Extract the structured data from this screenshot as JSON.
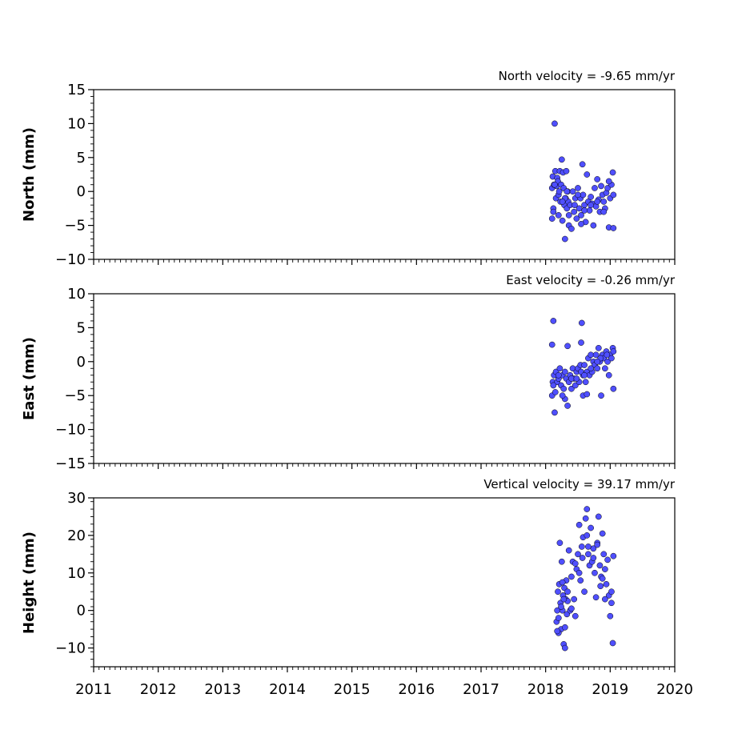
{
  "chart_data": [
    {
      "type": "scatter",
      "title": "North velocity = -9.65 mm/yr",
      "xlabel": "",
      "ylabel": "North (mm)",
      "ylim": [
        -10,
        15
      ],
      "yticks": [
        -10,
        -5,
        0,
        5,
        10,
        15
      ],
      "ytick_labels": [
        "−10",
        "−5",
        "0",
        "5",
        "10",
        "15"
      ],
      "xlim": [
        2011,
        2020
      ],
      "series": [
        {
          "color": "#4f4fff",
          "x": [
            2018.1,
            2018.1,
            2018.11,
            2018.12,
            2018.13,
            2018.14,
            2018.15,
            2018.16,
            2018.17,
            2018.18,
            2018.19,
            2018.2,
            2018.21,
            2018.22,
            2018.23,
            2018.24,
            2018.25,
            2018.26,
            2018.27,
            2018.28,
            2018.29,
            2018.3,
            2018.31,
            2018.32,
            2018.33,
            2018.34,
            2018.35,
            2018.36,
            2018.38,
            2018.4,
            2018.42,
            2018.44,
            2018.46,
            2018.48,
            2018.5,
            2018.52,
            2018.54,
            2018.55,
            2018.57,
            2018.58,
            2018.6,
            2018.62,
            2018.64,
            2018.66,
            2018.68,
            2018.7,
            2018.72,
            2018.74,
            2018.76,
            2018.78,
            2018.8,
            2018.82,
            2018.84,
            2018.86,
            2018.88,
            2018.9,
            2018.92,
            2018.94,
            2018.96,
            2018.98,
            2019.0,
            2019.02,
            2019.04,
            2019.05,
            2018.12,
            2018.3,
            2018.33,
            2018.55,
            2018.45,
            2018.6,
            2018.2,
            2019.05,
            2018.98,
            2018.7,
            2018.36,
            2018.5,
            2018.8,
            2018.9,
            2018.14,
            2018.26
          ],
          "y": [
            -4.0,
            0.5,
            2.2,
            -2.5,
            1.0,
            10.0,
            3.0,
            -1.0,
            0.8,
            2.0,
            1.5,
            -0.5,
            0.0,
            3.0,
            -1.5,
            1.0,
            4.7,
            -4.3,
            2.8,
            0.5,
            -2.0,
            -7.0,
            -1.0,
            3.0,
            -2.5,
            0.0,
            -1.5,
            -5.0,
            -2.0,
            -5.5,
            0.0,
            -3.0,
            -1.0,
            -4.0,
            0.5,
            -2.5,
            -1.0,
            -3.5,
            4.0,
            -0.5,
            -2.0,
            -4.5,
            2.5,
            -1.5,
            -2.8,
            -0.8,
            -1.8,
            -5.0,
            0.5,
            -2.2,
            1.8,
            -1.2,
            -3.0,
            0.8,
            -0.5,
            -1.5,
            -2.5,
            -0.2,
            0.5,
            -5.3,
            -1.0,
            1.0,
            2.8,
            -5.4,
            -3.0,
            -1.0,
            0.0,
            -4.8,
            -2.0,
            -2.8,
            -3.5,
            -0.5,
            1.5,
            -2.0,
            -3.5,
            -0.5,
            -1.5,
            -3.0,
            1.0,
            -1.5
          ]
        }
      ]
    },
    {
      "type": "scatter",
      "title": "East velocity = -0.26 mm/yr",
      "xlabel": "",
      "ylabel": "East (mm)",
      "ylim": [
        -15,
        10
      ],
      "yticks": [
        -15,
        -10,
        -5,
        0,
        5,
        10
      ],
      "ytick_labels": [
        "−15",
        "−10",
        "−5",
        "0",
        "5",
        "10"
      ],
      "xlim": [
        2011,
        2020
      ],
      "series": [
        {
          "color": "#4f4fff",
          "x": [
            2018.1,
            2018.1,
            2018.11,
            2018.12,
            2018.13,
            2018.14,
            2018.15,
            2018.16,
            2018.18,
            2018.2,
            2018.22,
            2018.24,
            2018.26,
            2018.28,
            2018.3,
            2018.32,
            2018.34,
            2018.36,
            2018.38,
            2018.4,
            2018.42,
            2018.44,
            2018.46,
            2018.48,
            2018.5,
            2018.52,
            2018.54,
            2018.55,
            2018.56,
            2018.58,
            2018.6,
            2018.62,
            2018.64,
            2018.66,
            2018.68,
            2018.7,
            2018.72,
            2018.74,
            2018.76,
            2018.78,
            2018.8,
            2018.82,
            2018.84,
            2018.86,
            2018.88,
            2018.9,
            2018.92,
            2018.94,
            2018.96,
            2018.98,
            2019.0,
            2019.02,
            2019.04,
            2019.05,
            2018.12,
            2018.3,
            2018.34,
            2018.55,
            2018.58,
            2018.64,
            2018.7,
            2018.85,
            2019.05,
            2018.2,
            2018.4,
            2018.6,
            2018.8,
            2018.95,
            2018.26,
            2018.48
          ],
          "y": [
            -5.0,
            2.5,
            -3.0,
            6.0,
            -2.0,
            -7.5,
            -4.5,
            -1.5,
            -3.0,
            -2.5,
            -1.0,
            -3.5,
            -2.0,
            -4.0,
            -1.5,
            -2.5,
            2.3,
            -3.0,
            -2.0,
            -4.0,
            -1.0,
            -2.5,
            -3.5,
            -1.5,
            -1.0,
            -3.0,
            -0.5,
            2.8,
            5.7,
            -2.0,
            -0.5,
            -3.0,
            -1.5,
            0.5,
            -2.0,
            1.0,
            -1.5,
            0.0,
            -0.5,
            1.0,
            -1.0,
            2.0,
            0.0,
            -5.0,
            1.0,
            0.5,
            -1.0,
            1.5,
            0.0,
            -2.0,
            1.0,
            0.5,
            2.0,
            -4.0,
            -3.5,
            -5.5,
            -6.5,
            -1.5,
            -5.0,
            -4.8,
            -1.0,
            0.5,
            1.5,
            -2.0,
            -2.5,
            -2.0,
            0.0,
            1.0,
            -5.0,
            -2.5
          ]
        }
      ]
    },
    {
      "type": "scatter",
      "title": "Vertical velocity = 39.17 mm/yr",
      "xlabel": "",
      "ylabel": "Height (mm)",
      "ylim": [
        -15,
        30
      ],
      "yticks": [
        -10,
        0,
        10,
        20,
        30
      ],
      "ytick_labels": [
        "−10",
        "0",
        "10",
        "20",
        "30"
      ],
      "xlim": [
        2011,
        2020
      ],
      "xticks": [
        2011,
        2012,
        2013,
        2014,
        2015,
        2016,
        2017,
        2018,
        2019,
        2020
      ],
      "xtick_labels": [
        "2011",
        "2012",
        "2013",
        "2014",
        "2015",
        "2016",
        "2017",
        "2018",
        "2019",
        "2020"
      ],
      "series": [
        {
          "color": "#4f4fff",
          "x": [
            2018.17,
            2018.18,
            2018.19,
            2018.2,
            2018.21,
            2018.22,
            2018.23,
            2018.24,
            2018.25,
            2018.26,
            2018.27,
            2018.28,
            2018.29,
            2018.3,
            2018.31,
            2018.32,
            2018.33,
            2018.34,
            2018.36,
            2018.38,
            2018.4,
            2018.42,
            2018.44,
            2018.46,
            2018.48,
            2018.5,
            2018.52,
            2018.54,
            2018.56,
            2018.57,
            2018.58,
            2018.6,
            2018.62,
            2018.64,
            2018.66,
            2018.68,
            2018.7,
            2018.72,
            2018.74,
            2018.76,
            2018.78,
            2018.8,
            2018.82,
            2018.84,
            2018.86,
            2018.88,
            2018.9,
            2018.92,
            2018.94,
            2018.96,
            2018.98,
            2019.0,
            2019.02,
            2019.04,
            2019.05,
            2018.2,
            2018.26,
            2018.3,
            2018.64,
            2018.66,
            2018.74,
            2018.85,
            2018.92,
            2018.18,
            2018.24,
            2018.28,
            2018.34,
            2018.4,
            2018.46,
            2018.52,
            2018.8,
            2018.88,
            2019.02
          ],
          "y": [
            -3.0,
            0.0,
            5.0,
            -2.0,
            7.0,
            18.0,
            2.0,
            -5.0,
            13.0,
            0.0,
            4.0,
            -9.0,
            6.0,
            -10.0,
            3.0,
            8.0,
            -1.0,
            2.5,
            16.0,
            0.0,
            9.0,
            13.0,
            3.0,
            -1.5,
            11.0,
            15.0,
            22.8,
            8.0,
            17.0,
            14.0,
            19.5,
            5.0,
            24.5,
            27.0,
            15.0,
            12.0,
            22.0,
            13.0,
            16.5,
            10.0,
            3.5,
            18.0,
            25.0,
            12.0,
            9.0,
            20.5,
            15.0,
            11.0,
            7.0,
            13.5,
            4.0,
            -1.5,
            5.0,
            -8.7,
            14.5,
            -6.0,
            7.5,
            -4.5,
            20.0,
            17.0,
            14.0,
            6.5,
            3.0,
            -5.5,
            1.0,
            3.0,
            5.0,
            0.5,
            12.5,
            10.0,
            17.5,
            8.5,
            2.0
          ]
        }
      ]
    }
  ]
}
